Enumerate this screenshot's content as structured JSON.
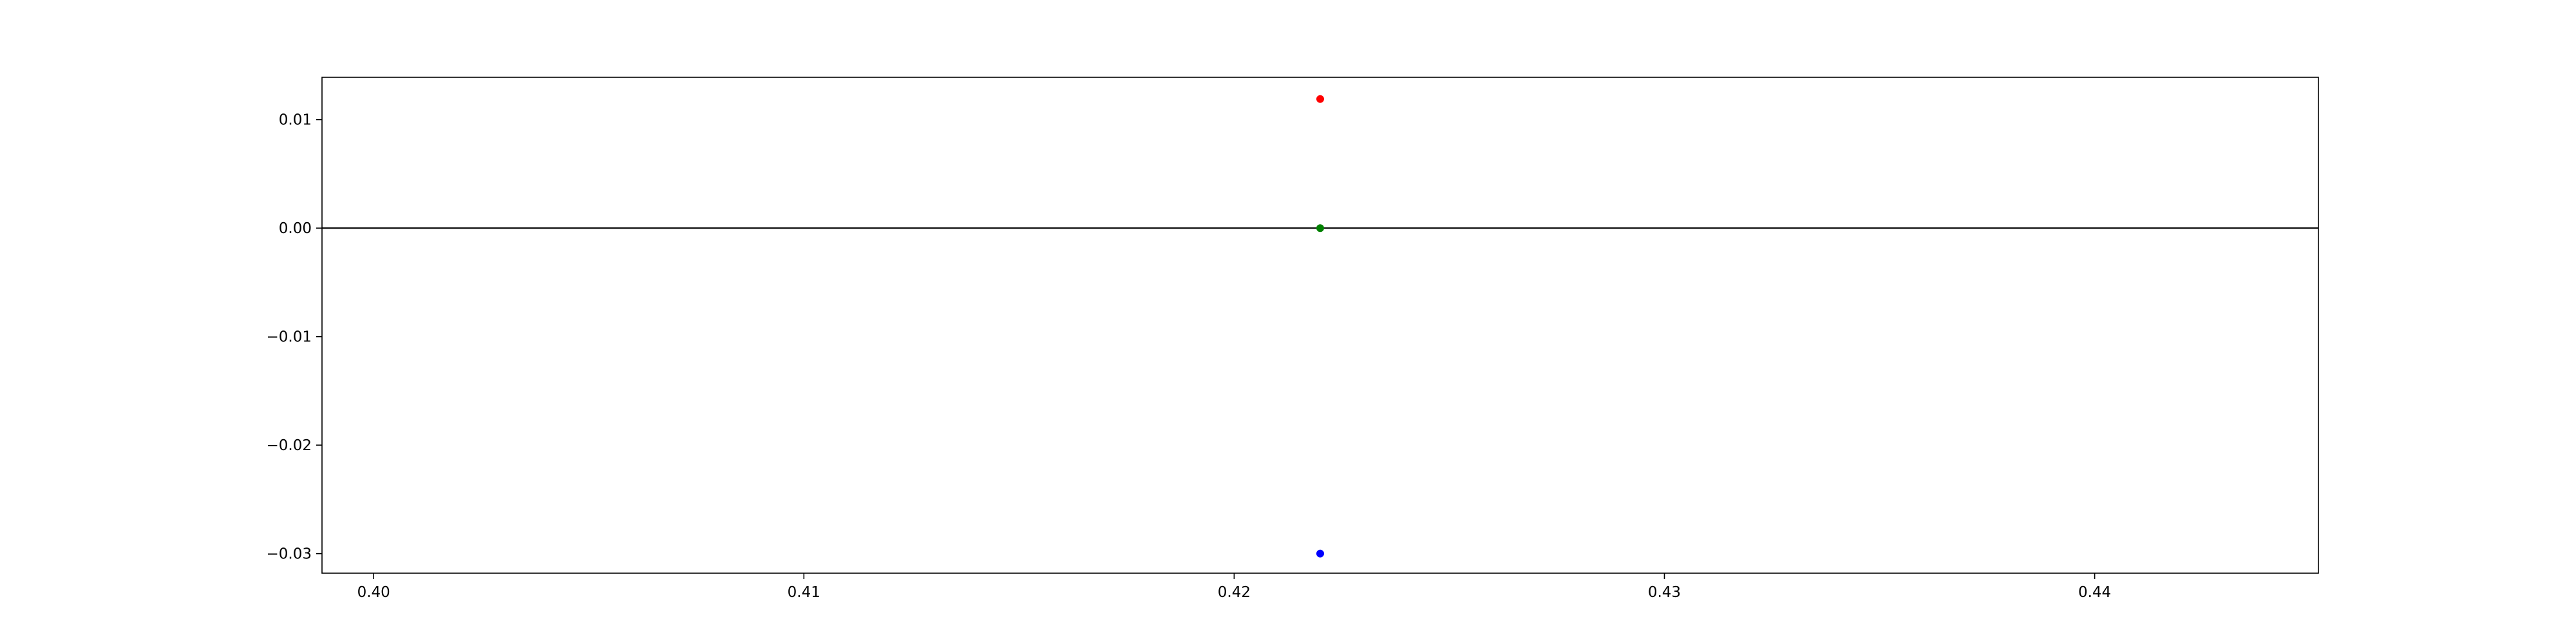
{
  "chart_data": {
    "type": "scatter",
    "title": "",
    "xlabel": "",
    "ylabel": "",
    "xlim": [
      0.3988,
      0.4452
    ],
    "ylim": [
      -0.0318,
      0.0139
    ],
    "grid": false,
    "xticks": [
      {
        "value": 0.4,
        "label": "0.40"
      },
      {
        "value": 0.41,
        "label": "0.41"
      },
      {
        "value": 0.42,
        "label": "0.42"
      },
      {
        "value": 0.43,
        "label": "0.43"
      },
      {
        "value": 0.44,
        "label": "0.44"
      }
    ],
    "yticks": [
      {
        "value": 0.01,
        "label": "0.01"
      },
      {
        "value": 0.0,
        "label": "0.00"
      },
      {
        "value": -0.01,
        "label": "−0.01"
      },
      {
        "value": -0.02,
        "label": "−0.02"
      },
      {
        "value": -0.03,
        "label": "−0.03"
      }
    ],
    "reference_line": {
      "y": 0.0,
      "color": "#000000"
    },
    "points": [
      {
        "x": 0.422,
        "y": 0.0119,
        "color": "#ff0000"
      },
      {
        "x": 0.422,
        "y": 0.0,
        "color": "#008000"
      },
      {
        "x": 0.422,
        "y": -0.03,
        "color": "#0000ff"
      }
    ]
  }
}
